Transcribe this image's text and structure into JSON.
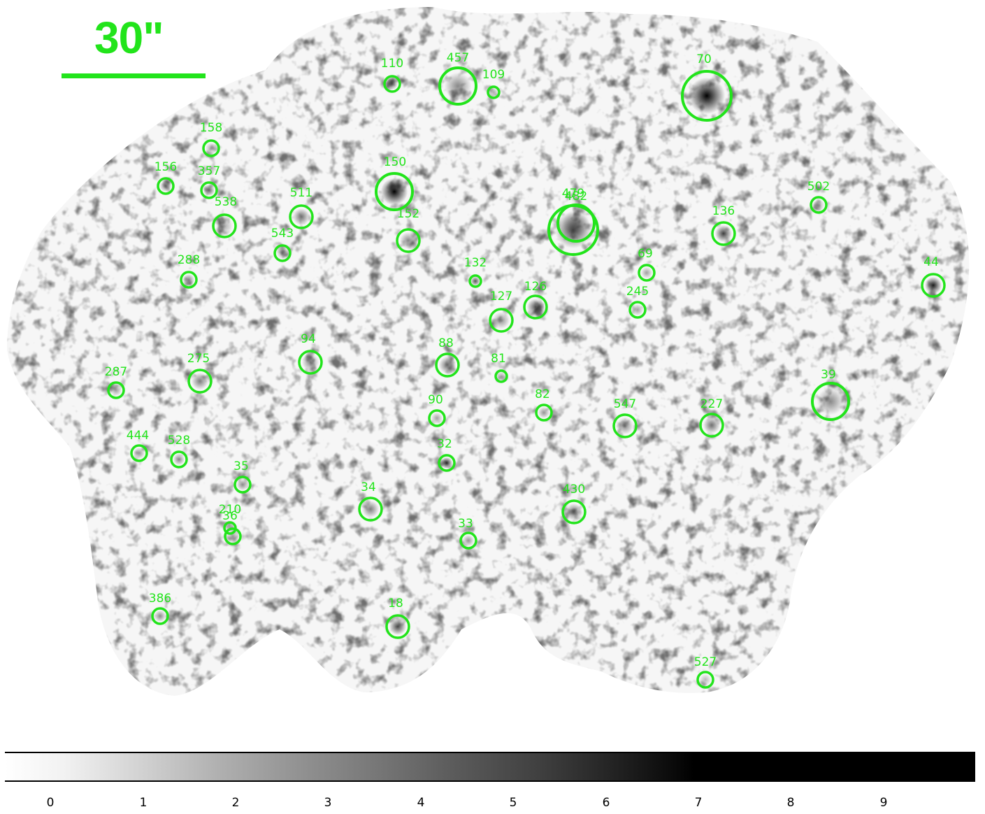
{
  "scale_bar": {
    "label": "30\""
  },
  "overlay_color": "#22e41b",
  "sources": [
    {
      "id": "110",
      "r": "s"
    },
    {
      "id": "457",
      "r": "l"
    },
    {
      "id": "109",
      "r": "xs"
    },
    {
      "id": "70",
      "r": "xl"
    },
    {
      "id": "158",
      "r": "s"
    },
    {
      "id": "156",
      "r": "s"
    },
    {
      "id": "357",
      "r": "s"
    },
    {
      "id": "538",
      "r": "m"
    },
    {
      "id": "511",
      "r": "m"
    },
    {
      "id": "543",
      "r": "s"
    },
    {
      "id": "150",
      "r": "l"
    },
    {
      "id": "152",
      "r": "m"
    },
    {
      "id": "479",
      "r": "xl"
    },
    {
      "id": "482",
      "r": "l"
    },
    {
      "id": "502",
      "r": "s"
    },
    {
      "id": "136",
      "r": "m"
    },
    {
      "id": "288",
      "r": "s"
    },
    {
      "id": "132",
      "r": "xs"
    },
    {
      "id": "69",
      "r": "s"
    },
    {
      "id": "44",
      "r": "m"
    },
    {
      "id": "126",
      "r": "m"
    },
    {
      "id": "245",
      "r": "s"
    },
    {
      "id": "127",
      "r": "m"
    },
    {
      "id": "94",
      "r": "m"
    },
    {
      "id": "88",
      "r": "m"
    },
    {
      "id": "81",
      "r": "xs"
    },
    {
      "id": "287",
      "r": "s"
    },
    {
      "id": "275",
      "r": "m"
    },
    {
      "id": "39",
      "r": "l"
    },
    {
      "id": "90",
      "r": "s"
    },
    {
      "id": "82",
      "r": "s"
    },
    {
      "id": "547",
      "r": "m"
    },
    {
      "id": "227",
      "r": "m"
    },
    {
      "id": "444",
      "r": "s"
    },
    {
      "id": "528",
      "r": "s"
    },
    {
      "id": "32",
      "r": "s"
    },
    {
      "id": "35",
      "r": "s"
    },
    {
      "id": "34",
      "r": "m"
    },
    {
      "id": "430",
      "r": "m"
    },
    {
      "id": "210",
      "r": "xs"
    },
    {
      "id": "36",
      "r": "s"
    },
    {
      "id": "33",
      "r": "s"
    },
    {
      "id": "386",
      "r": "s"
    },
    {
      "id": "18",
      "r": "m"
    },
    {
      "id": "527",
      "r": "s"
    }
  ],
  "colorbar": {
    "ticks": [
      "0",
      "1",
      "2",
      "3",
      "4",
      "5",
      "6",
      "7",
      "8",
      "9"
    ]
  }
}
